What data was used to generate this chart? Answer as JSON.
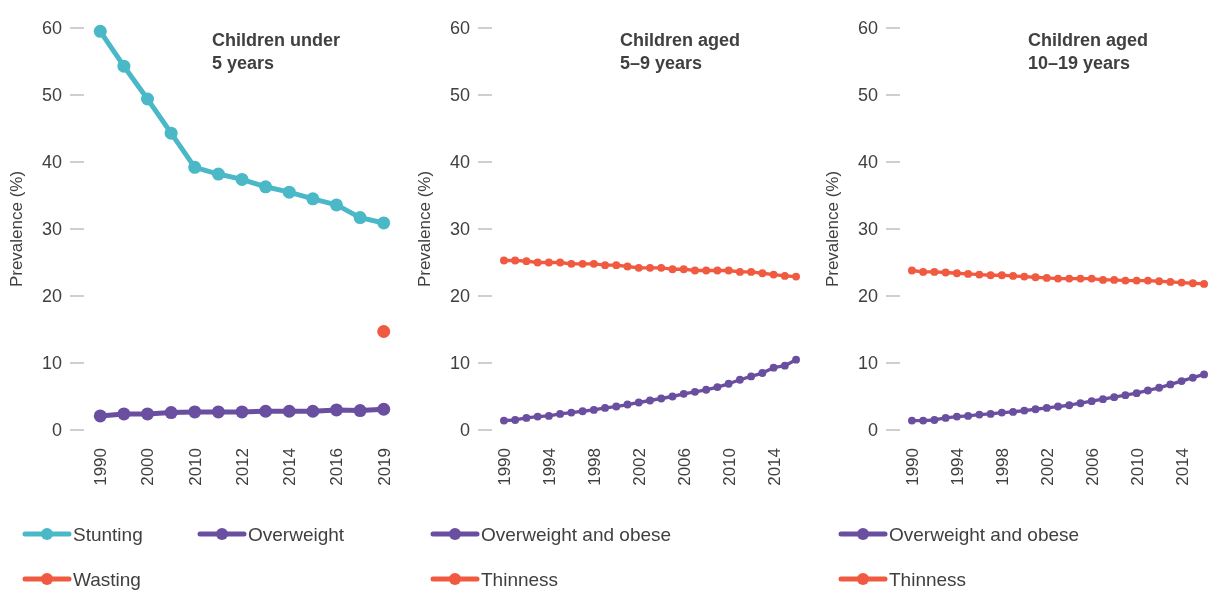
{
  "chart_data": [
    {
      "type": "line",
      "title": "Children under 5 years",
      "ylabel": "Prevalence (%)",
      "categories": [
        "1990",
        null,
        "2000",
        null,
        "2010",
        null,
        "2012",
        null,
        "2014",
        null,
        "2016",
        null,
        "2019"
      ],
      "ylim": [
        0,
        60
      ],
      "yticks": [
        0,
        10,
        20,
        30,
        40,
        50,
        60
      ],
      "grid": false,
      "legend": "bottom",
      "marker": "circle",
      "series": [
        {
          "name": "Stunting",
          "color": "#4bb8c8",
          "values": [
            59.5,
            54.3,
            49.4,
            44.3,
            39.2,
            38.2,
            37.4,
            36.3,
            35.5,
            34.5,
            33.6,
            31.7,
            30.9
          ]
        },
        {
          "name": "Overweight",
          "color": "#6a4fa0",
          "values": [
            2.1,
            2.4,
            2.4,
            2.6,
            2.7,
            2.7,
            2.7,
            2.8,
            2.8,
            2.8,
            3.0,
            2.9,
            3.1
          ]
        },
        {
          "name": "Wasting",
          "color": "#f05a40",
          "values": [
            null,
            null,
            null,
            null,
            null,
            null,
            null,
            null,
            null,
            null,
            null,
            null,
            14.7
          ]
        }
      ]
    },
    {
      "type": "line",
      "title": "Children aged 5–9 years",
      "ylabel": "Prevalence (%)",
      "categories": [
        "1990",
        null,
        null,
        null,
        "1994",
        null,
        null,
        null,
        "1998",
        null,
        null,
        null,
        "2002",
        null,
        null,
        null,
        "2006",
        null,
        null,
        null,
        "2010",
        null,
        null,
        null,
        "2014",
        null,
        null
      ],
      "ylim": [
        0,
        60
      ],
      "yticks": [
        0,
        10,
        20,
        30,
        40,
        50,
        60
      ],
      "grid": false,
      "legend": "bottom",
      "marker": "circle",
      "series": [
        {
          "name": "Overweight and obese",
          "color": "#6a4fa0",
          "values": [
            1.4,
            1.5,
            1.8,
            2.0,
            2.1,
            2.4,
            2.6,
            2.8,
            3.0,
            3.3,
            3.5,
            3.8,
            4.1,
            4.4,
            4.7,
            5.0,
            5.4,
            5.7,
            6.0,
            6.4,
            6.9,
            7.5,
            8.0,
            8.5,
            9.3,
            9.6,
            10.5
          ]
        },
        {
          "name": "Thinness",
          "color": "#f05a40",
          "values": [
            25.3,
            25.3,
            25.2,
            25.0,
            25.0,
            25.0,
            24.8,
            24.8,
            24.8,
            24.6,
            24.6,
            24.4,
            24.2,
            24.2,
            24.2,
            24.0,
            24.0,
            23.8,
            23.8,
            23.8,
            23.8,
            23.6,
            23.6,
            23.4,
            23.2,
            23.0,
            22.9
          ]
        }
      ]
    },
    {
      "type": "line",
      "title": "Children aged 10–19 years",
      "ylabel": "Prevalence (%)",
      "categories": [
        "1990",
        null,
        null,
        null,
        "1994",
        null,
        null,
        null,
        "1998",
        null,
        null,
        null,
        "2002",
        null,
        null,
        null,
        "2006",
        null,
        null,
        null,
        "2010",
        null,
        null,
        null,
        "2014",
        null,
        null
      ],
      "ylim": [
        0,
        60
      ],
      "yticks": [
        0,
        10,
        20,
        30,
        40,
        50,
        60
      ],
      "grid": false,
      "legend": "bottom",
      "marker": "circle",
      "series": [
        {
          "name": "Overweight and obese",
          "color": "#6a4fa0",
          "values": [
            1.4,
            1.4,
            1.5,
            1.8,
            2.0,
            2.1,
            2.3,
            2.4,
            2.6,
            2.7,
            2.9,
            3.1,
            3.3,
            3.5,
            3.7,
            4.0,
            4.3,
            4.6,
            4.9,
            5.2,
            5.5,
            5.9,
            6.3,
            6.8,
            7.3,
            7.8,
            8.3
          ]
        },
        {
          "name": "Thinness",
          "color": "#f05a40",
          "values": [
            23.8,
            23.6,
            23.6,
            23.5,
            23.4,
            23.3,
            23.2,
            23.1,
            23.1,
            23.0,
            22.9,
            22.8,
            22.7,
            22.6,
            22.6,
            22.6,
            22.6,
            22.4,
            22.4,
            22.3,
            22.3,
            22.3,
            22.2,
            22.1,
            22.0,
            21.9,
            21.8
          ]
        }
      ]
    }
  ]
}
